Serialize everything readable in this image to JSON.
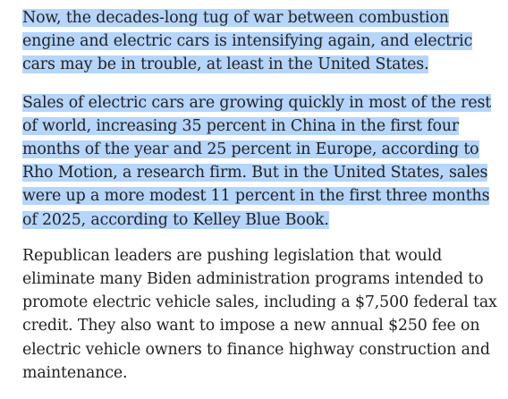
{
  "selection_color": "#b5d5fb",
  "paragraphs": [
    {
      "text": "Now, the decades-long tug of war between combustion engine and electric cars is intensifying again, and electric cars may be in trouble, at least in the United States.",
      "selected": true
    },
    {
      "text": "Sales of electric cars are growing quickly in most of the rest of world, increasing 35 percent in China in the first four months of the year and 25 percent in Europe, according to Rho Motion, a research firm. But in the United States, sales were up a more modest 11 percent in the first three months of 2025, according to Kelley Blue Book.",
      "selected": true
    },
    {
      "text": "Republican leaders are pushing legislation that would eliminate many Biden administration programs intended to promote electric vehicle sales, including a $7,500 federal tax credit. They also want to impose a new annual $250 fee on electric vehicle owners to finance highway construction and maintenance.",
      "selected": false
    }
  ]
}
